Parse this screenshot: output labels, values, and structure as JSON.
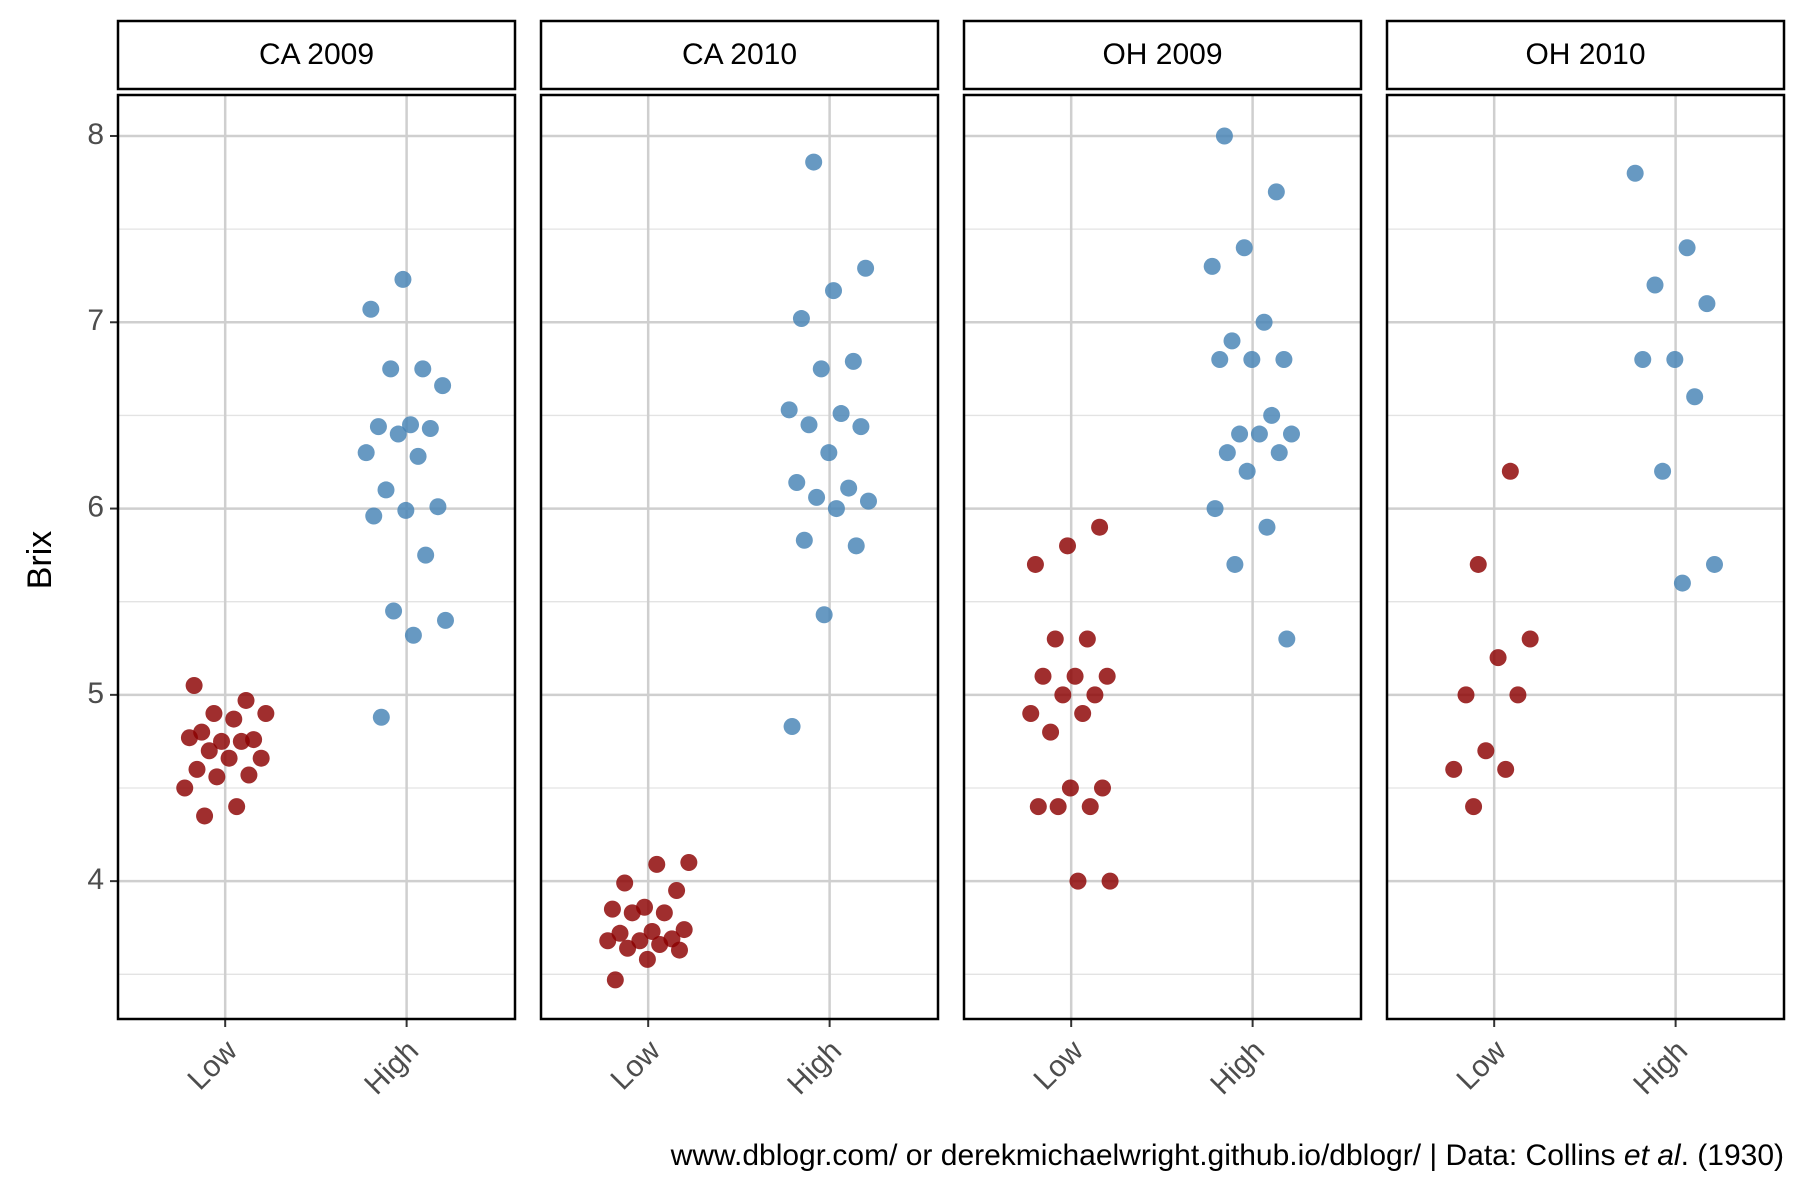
{
  "chart_data": [
    {
      "type": "strip",
      "title": "CA 2009",
      "y_label": "Brix",
      "categories": [
        "Low",
        "High"
      ],
      "series": [
        {
          "color": "#8b0000",
          "values": [
            5.05,
            4.97,
            4.9,
            4.9,
            4.87,
            4.8,
            4.76,
            4.75,
            4.77,
            4.75,
            4.7,
            4.66,
            4.66,
            4.6,
            4.57,
            4.56,
            4.5,
            4.4,
            4.35
          ]
        },
        {
          "color": "#4682b4",
          "values": [
            7.23,
            7.07,
            6.75,
            6.75,
            6.66,
            6.45,
            6.44,
            6.43,
            6.4,
            6.3,
            6.28,
            6.1,
            6.01,
            5.99,
            5.96,
            5.75,
            5.45,
            5.4,
            5.32,
            4.88
          ]
        }
      ],
      "ylim": [
        3.26,
        8.22
      ],
      "yticks": [
        4,
        5,
        6,
        7,
        8
      ],
      "minor_yticks": [
        3.5,
        4.5,
        5.5,
        6.5,
        7.5
      ],
      "grid": true
    },
    {
      "type": "strip",
      "title": "CA 2010",
      "categories": [
        "Low",
        "High"
      ],
      "series": [
        {
          "color": "#8b0000",
          "values": [
            4.1,
            4.09,
            3.99,
            3.95,
            3.86,
            3.85,
            3.83,
            3.83,
            3.74,
            3.73,
            3.72,
            3.69,
            3.68,
            3.68,
            3.66,
            3.64,
            3.63,
            3.58,
            3.47
          ]
        },
        {
          "color": "#4682b4",
          "values": [
            7.86,
            7.29,
            7.17,
            7.02,
            6.79,
            6.75,
            6.53,
            6.51,
            6.45,
            6.44,
            6.3,
            6.14,
            6.11,
            6.06,
            6.04,
            6.0,
            5.83,
            5.8,
            5.43,
            4.83
          ]
        }
      ],
      "ylim": [
        3.26,
        8.22
      ],
      "yticks": [
        4,
        5,
        6,
        7,
        8
      ],
      "minor_yticks": [
        3.5,
        4.5,
        5.5,
        6.5,
        7.5
      ],
      "grid": true
    },
    {
      "type": "strip",
      "title": "OH 2009",
      "categories": [
        "Low",
        "High"
      ],
      "series": [
        {
          "color": "#8b0000",
          "values": [
            5.9,
            5.8,
            5.7,
            5.3,
            5.3,
            5.1,
            5.1,
            5.1,
            5.0,
            5.0,
            4.9,
            4.9,
            4.8,
            4.5,
            4.5,
            4.4,
            4.4,
            4.4,
            4.0,
            4.0
          ]
        },
        {
          "color": "#4682b4",
          "values": [
            8.0,
            7.7,
            7.4,
            7.3,
            7.0,
            6.9,
            6.8,
            6.8,
            6.8,
            6.5,
            6.4,
            6.4,
            6.4,
            6.3,
            6.3,
            6.2,
            6.0,
            5.9,
            5.7,
            5.3
          ]
        }
      ],
      "ylim": [
        3.26,
        8.22
      ],
      "yticks": [
        4,
        5,
        6,
        7,
        8
      ],
      "minor_yticks": [
        3.5,
        4.5,
        5.5,
        6.5,
        7.5
      ],
      "grid": true
    },
    {
      "type": "strip",
      "title": "OH 2010",
      "categories": [
        "Low",
        "High"
      ],
      "series": [
        {
          "color": "#8b0000",
          "values": [
            6.2,
            5.7,
            5.3,
            5.2,
            5.0,
            5.0,
            4.7,
            4.6,
            4.6,
            4.4
          ]
        },
        {
          "color": "#4682b4",
          "values": [
            7.8,
            7.4,
            7.2,
            7.1,
            6.8,
            6.8,
            6.6,
            6.2,
            5.7,
            5.6
          ]
        }
      ],
      "ylim": [
        3.26,
        8.22
      ],
      "yticks": [
        4,
        5,
        6,
        7,
        8
      ],
      "minor_yticks": [
        3.5,
        4.5,
        5.5,
        6.5,
        7.5
      ],
      "grid": true
    }
  ],
  "caption": [
    "www.dblogr.com/ or derekmichaelwright.github.io/dblogr/ | Data: Collins ",
    "et al",
    ". (1930)"
  ]
}
